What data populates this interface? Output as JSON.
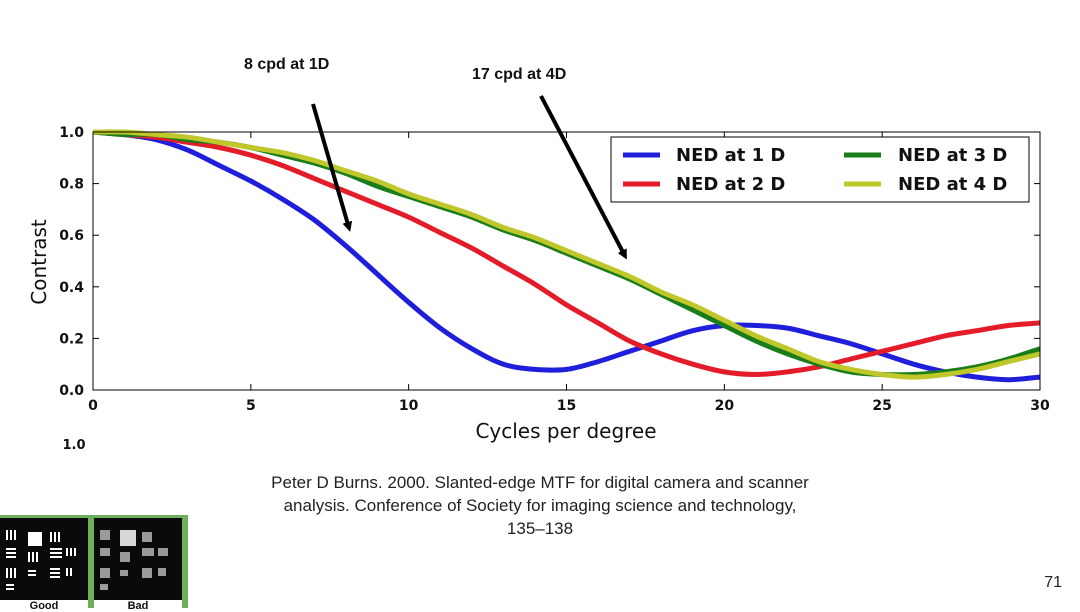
{
  "annotations": {
    "first": "8 cpd at 1D",
    "second": "17 cpd at 4D"
  },
  "citation": {
    "line1": "Peter D Burns. 2000. Slanted-edge MTF for digital camera and scanner",
    "line2": "analysis. Conference of Society for imaging science and technology,",
    "line3": "135–138"
  },
  "page_number": "71",
  "thumbnail": {
    "good_label": "Good",
    "bad_label": "Bad"
  },
  "colors": {
    "ned_1d": "#1f1fdb",
    "ned_2d": "#e41c2a",
    "ned_3d": "#1a7d1a",
    "ned_4d": "#bfc72a",
    "axis": "#000000"
  },
  "chart_data": {
    "type": "line",
    "xlabel": "Cycles per degree",
    "ylabel": "Contrast",
    "xlim": [
      0,
      30
    ],
    "ylim": [
      0.0,
      1.0
    ],
    "xticks": [
      "0",
      "5",
      "10",
      "15",
      "20",
      "25",
      "30"
    ],
    "yticks": [
      "0.0",
      "0.2",
      "0.4",
      "0.6",
      "0.8",
      "1.0"
    ],
    "grid": false,
    "legend_position": "top-right",
    "series": [
      {
        "name": "NED at 1 D",
        "x": [
          0,
          1,
          2,
          3,
          4,
          5,
          6,
          7,
          8,
          9,
          10,
          11,
          12,
          13,
          14,
          15,
          16,
          17,
          18,
          19,
          20,
          21,
          22,
          23,
          24,
          25,
          26,
          27,
          28,
          29,
          30
        ],
        "y": [
          1.0,
          0.99,
          0.97,
          0.93,
          0.87,
          0.81,
          0.74,
          0.66,
          0.56,
          0.45,
          0.34,
          0.24,
          0.16,
          0.1,
          0.08,
          0.08,
          0.11,
          0.15,
          0.19,
          0.23,
          0.25,
          0.25,
          0.24,
          0.21,
          0.18,
          0.14,
          0.1,
          0.07,
          0.05,
          0.04,
          0.05
        ]
      },
      {
        "name": "NED at 2 D",
        "x": [
          0,
          1,
          2,
          3,
          4,
          5,
          6,
          7,
          8,
          9,
          10,
          11,
          12,
          13,
          14,
          15,
          16,
          17,
          18,
          19,
          20,
          21,
          22,
          23,
          24,
          25,
          26,
          27,
          28,
          29,
          30
        ],
        "y": [
          1.0,
          0.99,
          0.98,
          0.96,
          0.94,
          0.91,
          0.87,
          0.82,
          0.77,
          0.72,
          0.67,
          0.61,
          0.55,
          0.48,
          0.41,
          0.33,
          0.26,
          0.19,
          0.14,
          0.1,
          0.07,
          0.06,
          0.07,
          0.09,
          0.12,
          0.15,
          0.18,
          0.21,
          0.23,
          0.25,
          0.26
        ]
      },
      {
        "name": "NED at 3 D",
        "x": [
          0,
          1,
          2,
          3,
          4,
          5,
          6,
          7,
          8,
          9,
          10,
          11,
          12,
          13,
          14,
          15,
          16,
          17,
          18,
          19,
          20,
          21,
          22,
          23,
          24,
          25,
          26,
          27,
          28,
          29,
          30
        ],
        "y": [
          1.0,
          0.99,
          0.99,
          0.97,
          0.96,
          0.94,
          0.91,
          0.88,
          0.84,
          0.79,
          0.75,
          0.71,
          0.67,
          0.62,
          0.58,
          0.53,
          0.48,
          0.43,
          0.37,
          0.31,
          0.25,
          0.19,
          0.14,
          0.1,
          0.07,
          0.06,
          0.06,
          0.07,
          0.09,
          0.12,
          0.16
        ]
      },
      {
        "name": "NED at 4 D",
        "x": [
          0,
          1,
          2,
          3,
          4,
          5,
          6,
          7,
          8,
          9,
          10,
          11,
          12,
          13,
          14,
          15,
          16,
          17,
          18,
          19,
          20,
          21,
          22,
          23,
          24,
          25,
          26,
          27,
          28,
          29,
          30
        ],
        "y": [
          1.0,
          1.0,
          0.99,
          0.98,
          0.96,
          0.94,
          0.92,
          0.89,
          0.85,
          0.81,
          0.76,
          0.72,
          0.68,
          0.63,
          0.59,
          0.54,
          0.49,
          0.44,
          0.38,
          0.33,
          0.27,
          0.21,
          0.16,
          0.11,
          0.08,
          0.06,
          0.05,
          0.06,
          0.08,
          0.11,
          0.14
        ]
      }
    ],
    "truncated_tick_fragment": "1.0"
  }
}
